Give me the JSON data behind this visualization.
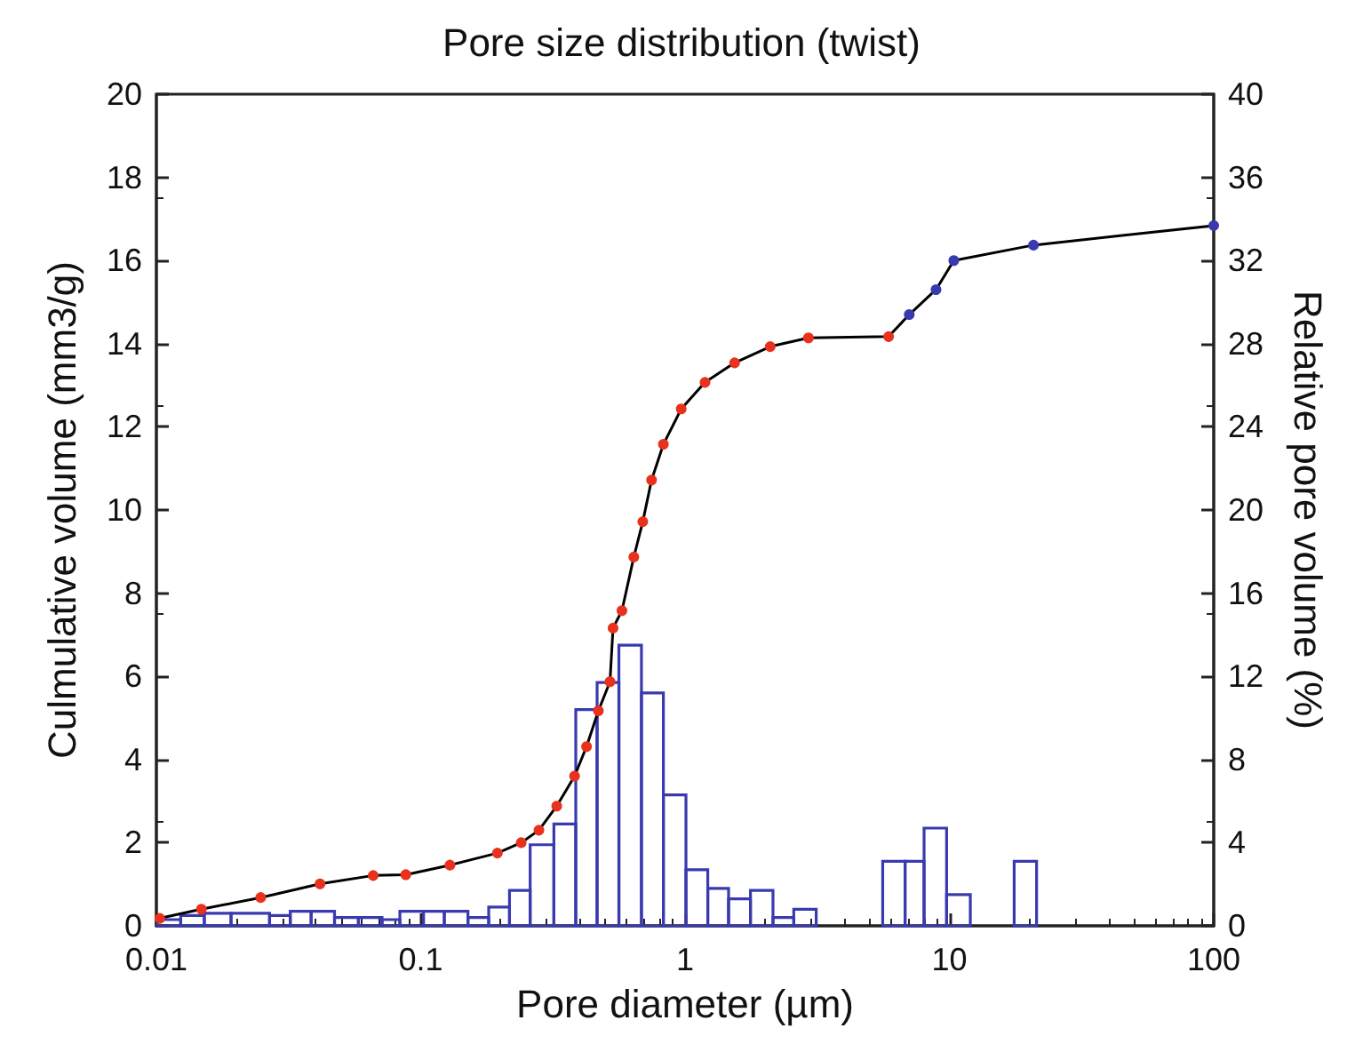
{
  "chart_data": {
    "type": "line",
    "title": "Pore size distribution (twist)",
    "xlabel": "Pore diameter (µm)",
    "ylabel": "Culmulative volume (mm3/g)",
    "y2label": "Relative pore volume (%)",
    "log": "x",
    "xlim": [
      0.01,
      100
    ],
    "xticks": [
      0.01,
      0.1,
      1,
      10,
      100
    ],
    "ylim": [
      0,
      20
    ],
    "yticks": [
      0,
      2,
      4,
      6,
      8,
      10,
      12,
      14,
      16,
      18,
      20
    ],
    "y2lim": [
      0,
      40
    ],
    "y2ticks": [
      0,
      4,
      8,
      12,
      16,
      20,
      24,
      28,
      32,
      36,
      40
    ],
    "grid": false,
    "legend": false,
    "marker": "circle",
    "series": [
      {
        "color": "#000000",
        "x": [
          0.0103,
          0.0148,
          0.0248,
          0.0416,
          0.0661,
          0.0878,
          0.129,
          0.195,
          0.24,
          0.28,
          0.327,
          0.382,
          0.424,
          0.47,
          0.52,
          0.534,
          0.577,
          0.64,
          0.692,
          0.747,
          0.828,
          0.967,
          1.19,
          1.54,
          2.1,
          2.93,
          5.89,
          7.05,
          8.9,
          10.39,
          20.8,
          100
        ],
        "values": [
          0.18,
          0.4,
          0.68,
          1.01,
          1.21,
          1.23,
          1.46,
          1.75,
          2.0,
          2.3,
          2.88,
          3.6,
          4.31,
          5.17,
          5.87,
          7.16,
          7.58,
          8.87,
          9.72,
          10.72,
          11.58,
          12.43,
          13.07,
          13.54,
          13.93,
          14.14,
          14.17,
          14.7,
          15.3,
          16.0,
          16.37,
          16.84
        ],
        "colors": [
          "#e8321e",
          "#e8321e",
          "#e8321e",
          "#e8321e",
          "#e8321e",
          "#e8321e",
          "#e8321e",
          "#e8321e",
          "#e8321e",
          "#e8321e",
          "#e8321e",
          "#e8321e",
          "#e8321e",
          "#e8321e",
          "#e8321e",
          "#e8321e",
          "#e8321e",
          "#e8321e",
          "#e8321e",
          "#e8321e",
          "#e8321e",
          "#e8321e",
          "#e8321e",
          "#e8321e",
          "#e8321e",
          "#e8321e",
          "#e8321e",
          "#3a3ab0",
          "#3a3ab0",
          "#3a3ab0",
          "#3a3ab0",
          "#3a3ab0"
        ]
      },
      {
        "type": "histogram",
        "axis": "y2",
        "color": "#3a3ab0",
        "bins": [
          0.0101,
          0.01236,
          0.01518,
          0.01916,
          0.0268,
          0.0321,
          0.0385,
          0.0472,
          0.0581,
          0.0714,
          0.0834,
          0.1024,
          0.1228,
          0.1509,
          0.1808,
          0.2167,
          0.2594,
          0.319,
          0.386,
          0.4648,
          0.562,
          0.684,
          0.828,
          1.008,
          1.219,
          1.461,
          1.768,
          2.151,
          2.578,
          3.134,
          5.594,
          6.797,
          8.02,
          9.76,
          12.0,
          17.58,
          21.37
        ],
        "values": [
          0.3,
          0.5,
          0.6,
          0.6,
          0.5,
          0.7,
          0.7,
          0.4,
          0.4,
          0.3,
          0.7,
          0.7,
          0.7,
          0.4,
          0.9,
          1.7,
          3.9,
          4.9,
          10.4,
          11.7,
          13.5,
          11.2,
          6.3,
          2.7,
          1.8,
          1.3,
          1.7,
          0.4,
          0.8,
          0,
          3.1,
          3.1,
          4.7,
          1.5,
          0,
          3.1
        ]
      }
    ]
  }
}
